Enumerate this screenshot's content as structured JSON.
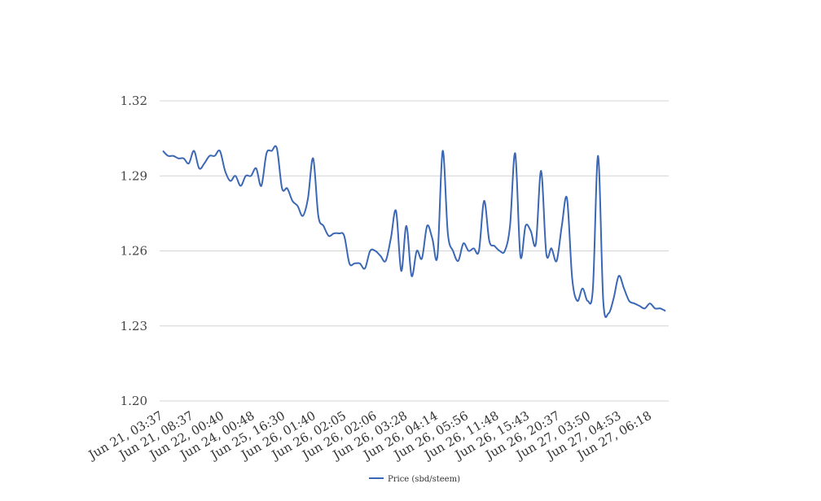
{
  "chart_data": {
    "type": "line",
    "title": "",
    "xlabel": "",
    "ylabel": "",
    "ylim": [
      1.2,
      1.32
    ],
    "y_ticks": [
      "1.20",
      "1.23",
      "1.26",
      "1.29",
      "1.32"
    ],
    "x_tick_labels": [
      "Jun 21, 03:37",
      "Jun 21, 08:37",
      "Jun 22, 00:40",
      "Jun 24, 00:48",
      "Jun 25, 16:30",
      "Jun 26, 01:40",
      "Jun 26, 02:05",
      "Jun 26, 02:06",
      "Jun 26, 03:28",
      "Jun 26, 04:14",
      "Jun 26, 05:56",
      "Jun 26, 11:48",
      "Jun 26, 15:43",
      "Jun 26, 20:37",
      "Jun 27, 03:50",
      "Jun 27, 04:53",
      "Jun 27, 06:18"
    ],
    "grid": true,
    "legend_position": "bottom",
    "series": [
      {
        "name": "Price (sbd/steem)",
        "color": "#3b67b5",
        "values": [
          1.3,
          1.298,
          1.298,
          1.297,
          1.297,
          1.295,
          1.3,
          1.293,
          1.295,
          1.298,
          1.298,
          1.3,
          1.292,
          1.288,
          1.29,
          1.286,
          1.29,
          1.29,
          1.293,
          1.286,
          1.299,
          1.3,
          1.301,
          1.285,
          1.285,
          1.28,
          1.278,
          1.274,
          1.281,
          1.297,
          1.274,
          1.27,
          1.266,
          1.267,
          1.267,
          1.266,
          1.255,
          1.255,
          1.255,
          1.253,
          1.26,
          1.26,
          1.258,
          1.256,
          1.265,
          1.276,
          1.252,
          1.27,
          1.25,
          1.26,
          1.257,
          1.27,
          1.265,
          1.258,
          1.3,
          1.267,
          1.26,
          1.256,
          1.263,
          1.26,
          1.261,
          1.26,
          1.28,
          1.264,
          1.262,
          1.26,
          1.26,
          1.27,
          1.299,
          1.258,
          1.27,
          1.268,
          1.263,
          1.292,
          1.259,
          1.261,
          1.256,
          1.27,
          1.281,
          1.249,
          1.24,
          1.245,
          1.24,
          1.245,
          1.298,
          1.24,
          1.235,
          1.241,
          1.25,
          1.245,
          1.24,
          1.239,
          1.238,
          1.237,
          1.239,
          1.237,
          1.237,
          1.236
        ]
      }
    ]
  }
}
